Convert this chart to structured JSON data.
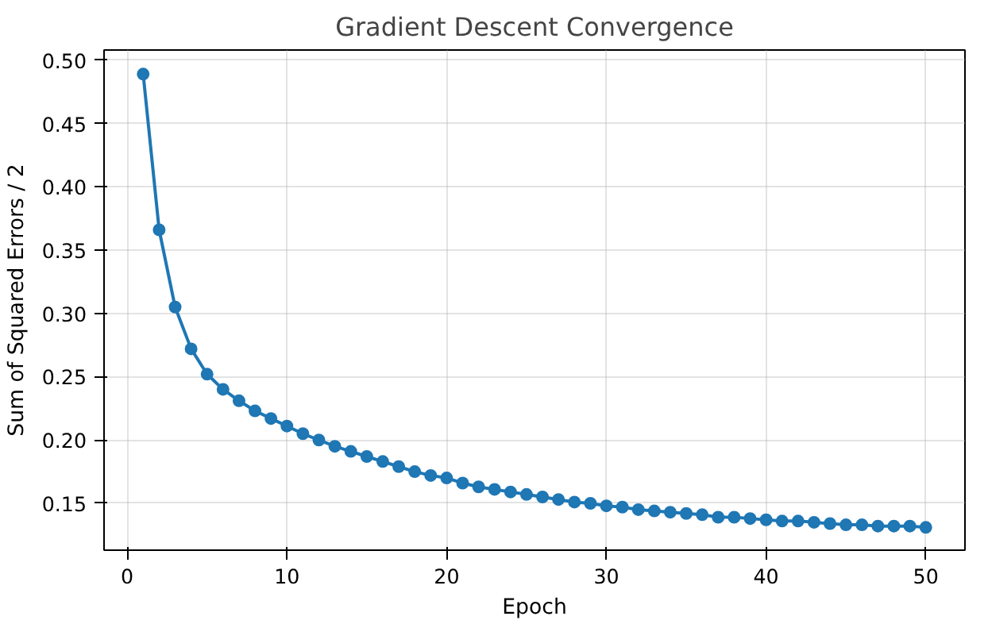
{
  "chart_data": {
    "type": "line",
    "title": "Gradient Descent Convergence",
    "xlabel": "Epoch",
    "ylabel": "Sum of Squared Errors / 2",
    "x": [
      1,
      2,
      3,
      4,
      5,
      6,
      7,
      8,
      9,
      10,
      11,
      12,
      13,
      14,
      15,
      16,
      17,
      18,
      19,
      20,
      21,
      22,
      23,
      24,
      25,
      26,
      27,
      28,
      29,
      30,
      31,
      32,
      33,
      34,
      35,
      36,
      37,
      38,
      39,
      40,
      41,
      42,
      43,
      44,
      45,
      46,
      47,
      48,
      49,
      50
    ],
    "series": [
      {
        "color": "#1f77b4",
        "values": [
          0.489,
          0.366,
          0.305,
          0.272,
          0.252,
          0.24,
          0.231,
          0.223,
          0.217,
          0.211,
          0.205,
          0.2,
          0.195,
          0.191,
          0.187,
          0.183,
          0.179,
          0.175,
          0.172,
          0.17,
          0.166,
          0.163,
          0.161,
          0.159,
          0.157,
          0.155,
          0.153,
          0.151,
          0.15,
          0.148,
          0.147,
          0.145,
          0.144,
          0.143,
          0.142,
          0.141,
          0.139,
          0.139,
          0.138,
          0.137,
          0.136,
          0.136,
          0.135,
          0.134,
          0.133,
          0.133,
          0.132,
          0.132,
          0.132,
          0.131
        ]
      }
    ],
    "xlim": [
      -1.45,
      52.45
    ],
    "ylim": [
      0.113,
      0.508
    ],
    "xticks": [
      0,
      10,
      20,
      30,
      40,
      50
    ],
    "yticks": [
      {
        "value": 0.15,
        "label": "0.15"
      },
      {
        "value": 0.2,
        "label": "0.20"
      },
      {
        "value": 0.25,
        "label": "0.25"
      },
      {
        "value": 0.3,
        "label": "0.30"
      },
      {
        "value": 0.35,
        "label": "0.35"
      },
      {
        "value": 0.4,
        "label": "0.40"
      },
      {
        "value": 0.45,
        "label": "0.45"
      },
      {
        "value": 0.5,
        "label": "0.50"
      }
    ],
    "grid": true,
    "marker": "circle",
    "line_style": "solid"
  }
}
